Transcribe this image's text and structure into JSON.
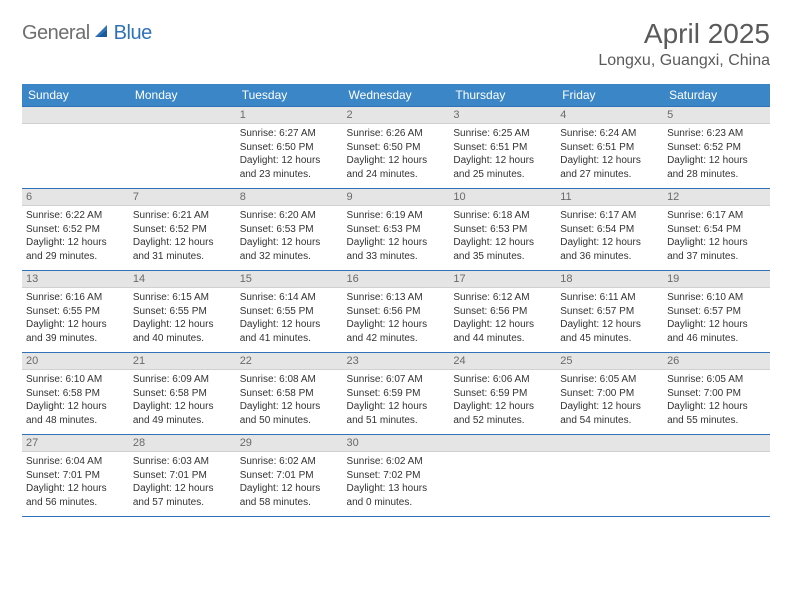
{
  "logo": {
    "text1": "General",
    "text2": "Blue"
  },
  "title": "April 2025",
  "location": "Longxu, Guangxi, China",
  "colors": {
    "header_bg": "#3b86c6",
    "header_text": "#ffffff",
    "daynum_bg": "#e5e5e5",
    "border": "#2f72b8",
    "title_color": "#5a5a5a"
  },
  "weekdays": [
    "Sunday",
    "Monday",
    "Tuesday",
    "Wednesday",
    "Thursday",
    "Friday",
    "Saturday"
  ],
  "weeks": [
    [
      {
        "n": "",
        "lines": []
      },
      {
        "n": "",
        "lines": []
      },
      {
        "n": "1",
        "lines": [
          "Sunrise: 6:27 AM",
          "Sunset: 6:50 PM",
          "Daylight: 12 hours and 23 minutes."
        ]
      },
      {
        "n": "2",
        "lines": [
          "Sunrise: 6:26 AM",
          "Sunset: 6:50 PM",
          "Daylight: 12 hours and 24 minutes."
        ]
      },
      {
        "n": "3",
        "lines": [
          "Sunrise: 6:25 AM",
          "Sunset: 6:51 PM",
          "Daylight: 12 hours and 25 minutes."
        ]
      },
      {
        "n": "4",
        "lines": [
          "Sunrise: 6:24 AM",
          "Sunset: 6:51 PM",
          "Daylight: 12 hours and 27 minutes."
        ]
      },
      {
        "n": "5",
        "lines": [
          "Sunrise: 6:23 AM",
          "Sunset: 6:52 PM",
          "Daylight: 12 hours and 28 minutes."
        ]
      }
    ],
    [
      {
        "n": "6",
        "lines": [
          "Sunrise: 6:22 AM",
          "Sunset: 6:52 PM",
          "Daylight: 12 hours and 29 minutes."
        ]
      },
      {
        "n": "7",
        "lines": [
          "Sunrise: 6:21 AM",
          "Sunset: 6:52 PM",
          "Daylight: 12 hours and 31 minutes."
        ]
      },
      {
        "n": "8",
        "lines": [
          "Sunrise: 6:20 AM",
          "Sunset: 6:53 PM",
          "Daylight: 12 hours and 32 minutes."
        ]
      },
      {
        "n": "9",
        "lines": [
          "Sunrise: 6:19 AM",
          "Sunset: 6:53 PM",
          "Daylight: 12 hours and 33 minutes."
        ]
      },
      {
        "n": "10",
        "lines": [
          "Sunrise: 6:18 AM",
          "Sunset: 6:53 PM",
          "Daylight: 12 hours and 35 minutes."
        ]
      },
      {
        "n": "11",
        "lines": [
          "Sunrise: 6:17 AM",
          "Sunset: 6:54 PM",
          "Daylight: 12 hours and 36 minutes."
        ]
      },
      {
        "n": "12",
        "lines": [
          "Sunrise: 6:17 AM",
          "Sunset: 6:54 PM",
          "Daylight: 12 hours and 37 minutes."
        ]
      }
    ],
    [
      {
        "n": "13",
        "lines": [
          "Sunrise: 6:16 AM",
          "Sunset: 6:55 PM",
          "Daylight: 12 hours and 39 minutes."
        ]
      },
      {
        "n": "14",
        "lines": [
          "Sunrise: 6:15 AM",
          "Sunset: 6:55 PM",
          "Daylight: 12 hours and 40 minutes."
        ]
      },
      {
        "n": "15",
        "lines": [
          "Sunrise: 6:14 AM",
          "Sunset: 6:55 PM",
          "Daylight: 12 hours and 41 minutes."
        ]
      },
      {
        "n": "16",
        "lines": [
          "Sunrise: 6:13 AM",
          "Sunset: 6:56 PM",
          "Daylight: 12 hours and 42 minutes."
        ]
      },
      {
        "n": "17",
        "lines": [
          "Sunrise: 6:12 AM",
          "Sunset: 6:56 PM",
          "Daylight: 12 hours and 44 minutes."
        ]
      },
      {
        "n": "18",
        "lines": [
          "Sunrise: 6:11 AM",
          "Sunset: 6:57 PM",
          "Daylight: 12 hours and 45 minutes."
        ]
      },
      {
        "n": "19",
        "lines": [
          "Sunrise: 6:10 AM",
          "Sunset: 6:57 PM",
          "Daylight: 12 hours and 46 minutes."
        ]
      }
    ],
    [
      {
        "n": "20",
        "lines": [
          "Sunrise: 6:10 AM",
          "Sunset: 6:58 PM",
          "Daylight: 12 hours and 48 minutes."
        ]
      },
      {
        "n": "21",
        "lines": [
          "Sunrise: 6:09 AM",
          "Sunset: 6:58 PM",
          "Daylight: 12 hours and 49 minutes."
        ]
      },
      {
        "n": "22",
        "lines": [
          "Sunrise: 6:08 AM",
          "Sunset: 6:58 PM",
          "Daylight: 12 hours and 50 minutes."
        ]
      },
      {
        "n": "23",
        "lines": [
          "Sunrise: 6:07 AM",
          "Sunset: 6:59 PM",
          "Daylight: 12 hours and 51 minutes."
        ]
      },
      {
        "n": "24",
        "lines": [
          "Sunrise: 6:06 AM",
          "Sunset: 6:59 PM",
          "Daylight: 12 hours and 52 minutes."
        ]
      },
      {
        "n": "25",
        "lines": [
          "Sunrise: 6:05 AM",
          "Sunset: 7:00 PM",
          "Daylight: 12 hours and 54 minutes."
        ]
      },
      {
        "n": "26",
        "lines": [
          "Sunrise: 6:05 AM",
          "Sunset: 7:00 PM",
          "Daylight: 12 hours and 55 minutes."
        ]
      }
    ],
    [
      {
        "n": "27",
        "lines": [
          "Sunrise: 6:04 AM",
          "Sunset: 7:01 PM",
          "Daylight: 12 hours and 56 minutes."
        ]
      },
      {
        "n": "28",
        "lines": [
          "Sunrise: 6:03 AM",
          "Sunset: 7:01 PM",
          "Daylight: 12 hours and 57 minutes."
        ]
      },
      {
        "n": "29",
        "lines": [
          "Sunrise: 6:02 AM",
          "Sunset: 7:01 PM",
          "Daylight: 12 hours and 58 minutes."
        ]
      },
      {
        "n": "30",
        "lines": [
          "Sunrise: 6:02 AM",
          "Sunset: 7:02 PM",
          "Daylight: 13 hours and 0 minutes."
        ]
      },
      {
        "n": "",
        "lines": []
      },
      {
        "n": "",
        "lines": []
      },
      {
        "n": "",
        "lines": []
      }
    ]
  ]
}
